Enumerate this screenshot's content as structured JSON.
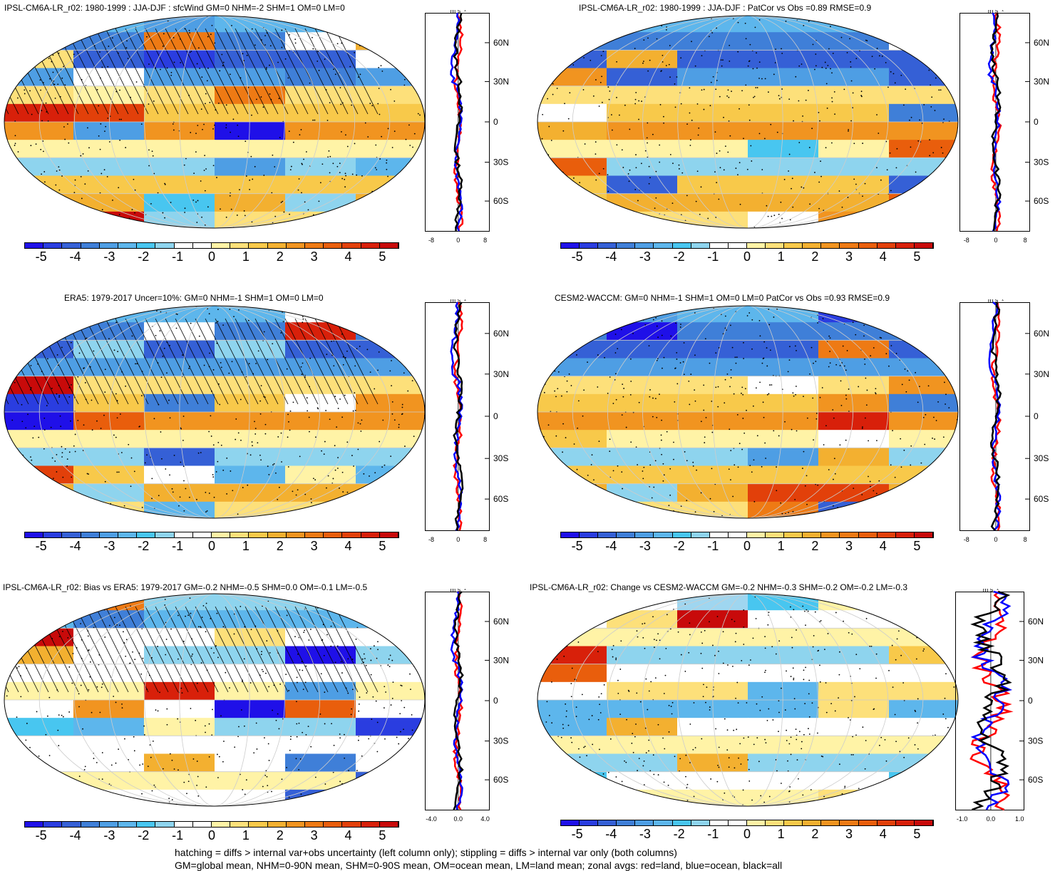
{
  "panels": [
    {
      "title": "IPSL-CM6A-LR_r02: 1980-1999 : JJA-DJF : sfcWind GM=0 NHM=-2 SHM=1 OM=0 LM=0",
      "zonal_ticks": [
        "-8",
        "0",
        "8"
      ],
      "units": "m s⁻¹"
    },
    {
      "title": "IPSL-CM6A-LR_r02: 1980-1999 : JJA-DJF : PatCor vs Obs =0.89 RMSE=0.9",
      "zonal_ticks": [
        "-8",
        "0",
        "8"
      ],
      "units": "m s⁻¹"
    },
    {
      "title": "ERA5: 1979-2017 Uncer=10%: GM=0 NHM=-1 SHM=1 OM=0 LM=0",
      "zonal_ticks": [
        "-8",
        "0",
        "8"
      ],
      "units": "m s⁻¹"
    },
    {
      "title": "CESM2-WACCM: GM=0 NHM=-1 SHM=1 OM=0 LM=0 PatCor vs Obs =0.93 RMSE=0.9",
      "zonal_ticks": [
        "-8",
        "0",
        "8"
      ],
      "units": "m s⁻¹"
    },
    {
      "title": "IPSL-CM6A-LR_r02: Bias vs ERA5: 1979-2017 GM=-0.2 NHM=-0.5 SHM=0.0 OM=-0.1 LM=-0.5",
      "zonal_ticks": [
        "-4.0",
        "0.0",
        "4.0"
      ],
      "units": "m s⁻¹"
    },
    {
      "title": "IPSL-CM6A-LR_r02: Change vs CESM2-WACCM GM=-0.2 NHM=-0.3 SHM=-0.2 OM=-0.2 LM=-0.3",
      "zonal_ticks": [
        "-1.0",
        "0.0",
        "1.0"
      ],
      "units": "m s⁻¹"
    }
  ],
  "lat_labels": [
    "60N",
    "30N",
    "0",
    "30S",
    "60S"
  ],
  "colorbar_labels": [
    "-5",
    "-4",
    "-3",
    "-2",
    "-1",
    "0",
    "1",
    "2",
    "3",
    "4",
    "5"
  ],
  "colorbar_colors": [
    "#1f10e8",
    "#2a3de0",
    "#3560d6",
    "#3f7fd8",
    "#4e9ee4",
    "#5db6ec",
    "#48c6f0",
    "#8ed4ee",
    "#ffffff",
    "#ffffff",
    "#fff3a6",
    "#fde07a",
    "#f8c94a",
    "#f3b030",
    "#f19420",
    "#ee7a14",
    "#e95e0c",
    "#e2400a",
    "#d8200a",
    "#c80a0a"
  ],
  "footer": [
    "hatching = diffs > internal var+obs uncertainty (left column only); stippling = diffs > internal var only (both columns)",
    "GM=global mean, NHM=0-90N mean, SHM=0-90S mean, OM=ocean mean, LM=land mean; zonal avgs: red=land, blue=ocean, black=all"
  ],
  "colors": {
    "land": "#ff0000",
    "ocean": "#0000ff",
    "all": "#000000"
  }
}
